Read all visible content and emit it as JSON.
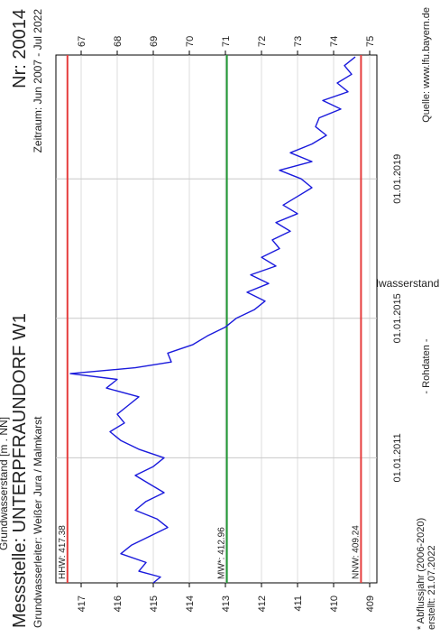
{
  "header": {
    "title": "Messstelle: UNTERPFRAUNDORF W1",
    "number": "Nr: 20014",
    "subtitle": "Grundwasserleiter:  Weißer Jura / Malmkarst",
    "period": "Zeitraum: Jun 2007 - Jul 2022"
  },
  "footer": {
    "note": "* Abflussjahr (2006-2020)",
    "created": "erstellt:  21.07.2022",
    "rawdata": "- Rohdaten -",
    "source": "Quelle:  www.lfu.bayern.de"
  },
  "colors": {
    "series": "#1a1adc",
    "hhw": "#e63c3c",
    "nnw": "#e63c3c",
    "mw": "#1e9632",
    "grid": "#c8c8c8"
  },
  "chart_data": {
    "type": "line",
    "orientation": "rotated-90-clockwise",
    "xlabel": "",
    "ylabel": "Grundwasserstand [m . NN]",
    "y2label": "Grundwasserstand [m u. Gelände]",
    "xlim": [
      "2007-06-01",
      "2022-07-21"
    ],
    "ylim": [
      408.8,
      417.7
    ],
    "y2lim": [
      75.2,
      66.3
    ],
    "x_ticks": [
      "01.01.2011",
      "01.01.2015",
      "01.01.2019"
    ],
    "y_ticks": [
      409,
      410,
      411,
      412,
      413,
      414,
      415,
      416,
      417
    ],
    "y2_ticks": [
      67,
      68,
      69,
      70,
      71,
      72,
      73,
      74,
      75
    ],
    "grid": true,
    "reference_lines": [
      {
        "label": "HHW: 417.38",
        "value": 417.38
      },
      {
        "label": "MW*: 412.96",
        "value": 412.96
      },
      {
        "label": "NNW: 409.24",
        "value": 409.24
      }
    ],
    "series": [
      {
        "x": [
          "2007-06-01",
          "2007-08-01",
          "2007-10-01",
          "2008-01-01",
          "2008-04-01",
          "2008-07-01",
          "2008-10-01",
          "2009-01-01",
          "2009-04-01",
          "2009-07-01",
          "2009-10-01",
          "2010-01-01",
          "2010-04-01",
          "2010-07-01",
          "2010-10-01",
          "2011-01-01",
          "2011-04-01",
          "2011-07-01",
          "2011-10-01",
          "2012-01-01",
          "2012-04-01",
          "2012-07-01",
          "2012-10-01",
          "2013-01-01",
          "2013-04-01",
          "2013-06-01",
          "2013-08-01",
          "2013-10-01",
          "2014-01-01",
          "2014-04-01",
          "2014-07-01",
          "2014-10-01",
          "2015-01-01",
          "2015-04-01",
          "2015-07-01",
          "2015-10-01",
          "2016-01-01",
          "2016-04-01",
          "2016-07-01",
          "2016-10-01",
          "2017-01-01",
          "2017-04-01",
          "2017-07-01",
          "2017-10-01",
          "2018-01-01",
          "2018-04-01",
          "2018-07-01",
          "2018-10-01",
          "2019-01-01",
          "2019-04-01",
          "2019-07-01",
          "2019-10-01",
          "2020-01-01",
          "2020-04-01",
          "2020-07-01",
          "2020-10-01",
          "2021-01-01",
          "2021-04-01",
          "2021-07-01",
          "2021-10-01",
          "2022-01-01",
          "2022-04-01",
          "2022-07-01"
        ],
        "values": [
          415.0,
          414.8,
          415.4,
          415.2,
          415.9,
          415.6,
          415.1,
          414.6,
          414.9,
          415.5,
          415.2,
          414.7,
          415.1,
          415.5,
          415.0,
          414.7,
          415.4,
          415.9,
          416.2,
          415.8,
          416.0,
          415.7,
          415.4,
          416.3,
          416.0,
          417.3,
          415.5,
          414.5,
          414.6,
          413.9,
          413.5,
          413.0,
          412.7,
          412.2,
          411.9,
          412.4,
          411.8,
          412.3,
          411.6,
          412.0,
          411.5,
          411.7,
          411.2,
          411.6,
          411.0,
          411.4,
          411.0,
          410.6,
          410.9,
          411.5,
          410.6,
          411.2,
          410.6,
          410.2,
          410.5,
          410.4,
          409.8,
          410.3,
          409.6,
          409.9,
          409.5,
          409.7,
          409.4
        ]
      }
    ]
  }
}
